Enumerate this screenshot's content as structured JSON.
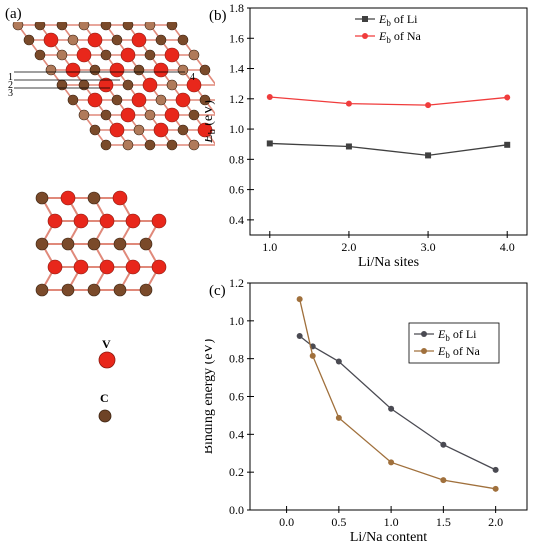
{
  "panels": {
    "a": "(a)",
    "b": "(b)",
    "c": "(c)"
  },
  "structure": {
    "site_labels": [
      "1",
      "2",
      "3",
      "4"
    ],
    "legend": {
      "v_label": "V",
      "c_label": "C"
    },
    "colors": {
      "vanadium": "#e8271b",
      "carbon": "#7a4a2a",
      "carbon_light": "#b07a5a",
      "bond": "#e0897a"
    }
  },
  "chart_data": [
    {
      "id": "b",
      "type": "line",
      "xlabel": "Li/Na sites",
      "ylabel": "E_b (eV)",
      "ylabel_main": "E",
      "ylabel_sub": "b",
      "ylabel_unit": " (eV)",
      "x": [
        1.0,
        2.0,
        3.0,
        4.0
      ],
      "xticks": [
        "1.0",
        "2.0",
        "3.0",
        "4.0"
      ],
      "xlim": [
        0.75,
        4.25
      ],
      "ylim": [
        0.3,
        1.8
      ],
      "yticks": [
        "0.4",
        "0.6",
        "0.8",
        "1.0",
        "1.2",
        "1.4",
        "1.6",
        "1.8"
      ],
      "series": [
        {
          "name": "Eb of Li",
          "name_main": "E",
          "name_sub": "b",
          "name_rest": " of Li",
          "color": "#404040",
          "marker": "square",
          "values": [
            0.905,
            0.885,
            0.826,
            0.896
          ]
        },
        {
          "name": "Eb of Na",
          "name_main": "E",
          "name_sub": "b",
          "name_rest": " of Na",
          "color": "#f03c3c",
          "marker": "circle",
          "values": [
            1.212,
            1.168,
            1.158,
            1.209
          ]
        }
      ],
      "legend": "top-right",
      "grid": false
    },
    {
      "id": "c",
      "type": "line",
      "xlabel": "Li/Na content",
      "ylabel": "Binding energy (eV)",
      "xticks": [
        "0.0",
        "0.5",
        "1.0",
        "1.5",
        "2.0"
      ],
      "xlim": [
        -0.35,
        2.3
      ],
      "ylim": [
        0.0,
        1.2
      ],
      "yticks": [
        "0.0",
        "0.2",
        "0.4",
        "0.6",
        "0.8",
        "1.0",
        "1.2"
      ],
      "series": [
        {
          "name": "Eb of Li",
          "name_main": "E",
          "name_sub": "b",
          "name_rest": " of Li",
          "color": "#4a4a52",
          "marker": "circle",
          "x": [
            0.125,
            0.25,
            0.5,
            1.0,
            1.5,
            2.0
          ],
          "values": [
            0.92,
            0.865,
            0.785,
            0.535,
            0.345,
            0.212
          ]
        },
        {
          "name": "Eb of Na",
          "name_main": "E",
          "name_sub": "b",
          "name_rest": " of Na",
          "color": "#a0703c",
          "marker": "circle",
          "x": [
            0.125,
            0.25,
            0.5,
            1.0,
            1.5,
            2.0
          ],
          "values": [
            1.115,
            0.815,
            0.487,
            0.252,
            0.158,
            0.112
          ]
        }
      ],
      "legend": "center-right",
      "grid": false
    }
  ]
}
